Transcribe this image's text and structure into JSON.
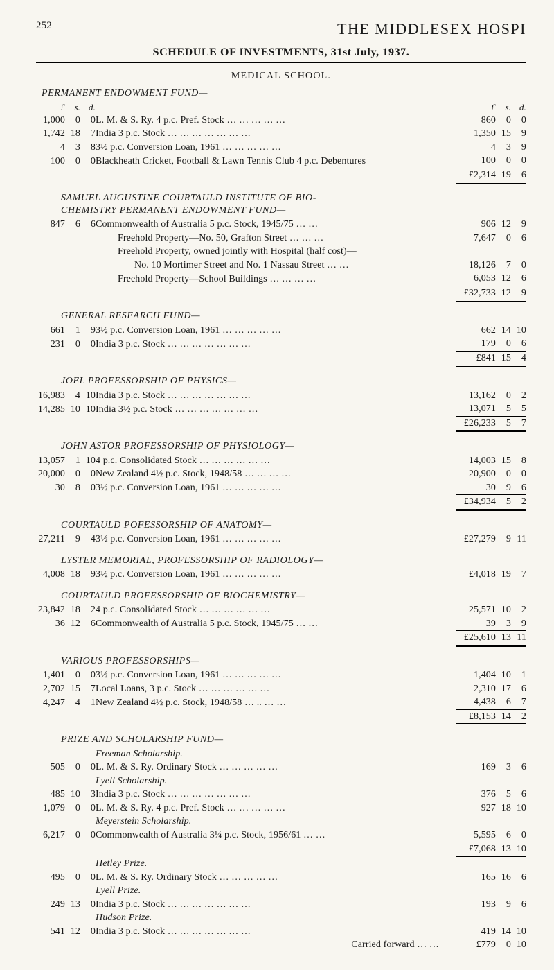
{
  "page_number": "252",
  "title_main": "THE MIDDLESEX HOSPI",
  "sub_title": "SCHEDULE OF INVESTMENTS, 31st July, 1937.",
  "section_head": "MEDICAL SCHOOL.",
  "col_headers": {
    "l": "£",
    "s": "s.",
    "d": "d.",
    "rl": "£",
    "rs": "s.",
    "rd": "d."
  },
  "groups": [
    {
      "title": "PERMANENT ENDOWMENT FUND—",
      "show_left_hdr": true,
      "rows": [
        {
          "l": "1,000",
          "s": "0",
          "d": "0",
          "desc": "L. M. & S. Ry. 4 p.c. Pref. Stock …   …   …   …   …",
          "rl": "860",
          "rs": "0",
          "rd": "0"
        },
        {
          "l": "1,742",
          "s": "18",
          "d": "7",
          "desc": "India 3 p.c. Stock    …   …   …   …   …   …   …",
          "rl": "1,350",
          "rs": "15",
          "rd": "9"
        },
        {
          "l": "4",
          "s": "3",
          "d": "8",
          "desc": "3½ p.c. Conversion Loan, 1961    …   …   …   …   …",
          "rl": "4",
          "rs": "3",
          "rd": "9"
        },
        {
          "l": "100",
          "s": "0",
          "d": "0",
          "desc": "Blackheath Cricket, Football & Lawn Tennis Club 4 p.c. Debentures",
          "rl": "100",
          "rs": "0",
          "rd": "0"
        }
      ],
      "total": {
        "rl": "£2,314",
        "rs": "19",
        "rd": "6"
      }
    },
    {
      "title": "SAMUEL AUGUSTINE COURTAULD INSTITUTE OF BIO-\n         CHEMISTRY PERMANENT ENDOWMENT FUND—",
      "indent": true,
      "rows": [
        {
          "l": "847",
          "s": "6",
          "d": "6",
          "desc": "Commonwealth of Australia 5 p.c. Stock, 1945/75   …   …",
          "rl": "906",
          "rs": "12",
          "rd": "9"
        },
        {
          "desc": "Freehold Property—No. 50, Grafton Street    …   …   …",
          "rl": "7,647",
          "rs": "0",
          "rd": "6",
          "indent": 1
        },
        {
          "desc": "Freehold Property, owned jointly with Hospital (half cost)—",
          "indent": 1
        },
        {
          "desc": "No. 10 Mortimer Street and No. 1 Nassau Street   …   …",
          "rl": "18,126",
          "rs": "7",
          "rd": "0",
          "indent": 2
        },
        {
          "desc": "Freehold Property—School Buildings    …   …   …   …",
          "rl": "6,053",
          "rs": "12",
          "rd": "6",
          "indent": 1
        }
      ],
      "total": {
        "rl": "£32,733",
        "rs": "12",
        "rd": "9"
      }
    },
    {
      "title": "GENERAL RESEARCH FUND—",
      "indent": true,
      "rows": [
        {
          "l": "661",
          "s": "1",
          "d": "9",
          "desc": "3½ p.c. Conversion Loan, 1961    …   …   …   …   …",
          "rl": "662",
          "rs": "14",
          "rd": "10"
        },
        {
          "l": "231",
          "s": "0",
          "d": "0",
          "desc": "India 3 p.c. Stock    …   …   …   …   …   …   …",
          "rl": "179",
          "rs": "0",
          "rd": "6"
        }
      ],
      "total": {
        "rl": "£841",
        "rs": "15",
        "rd": "4"
      }
    },
    {
      "title": "JOEL PROFESSORSHIP OF PHYSICS—",
      "indent": true,
      "rows": [
        {
          "l": "16,983",
          "s": "4",
          "d": "10",
          "desc": "India 3 p.c. Stock    …   …   …   …   …   …   …",
          "rl": "13,162",
          "rs": "0",
          "rd": "2"
        },
        {
          "l": "14,285",
          "s": "10",
          "d": "10",
          "desc": "India 3½ p.c. Stock   …   …   …   …   …   …   …",
          "rl": "13,071",
          "rs": "5",
          "rd": "5"
        }
      ],
      "total": {
        "rl": "£26,233",
        "rs": "5",
        "rd": "7"
      }
    },
    {
      "title": "JOHN ASTOR PROFESSORSHIP OF PHYSIOLOGY—",
      "indent": true,
      "rows": [
        {
          "l": "13,057",
          "s": "1",
          "d": "10",
          "desc": "4 p.c. Consolidated Stock    …   …   …   …   …   …",
          "rl": "14,003",
          "rs": "15",
          "rd": "8"
        },
        {
          "l": "20,000",
          "s": "0",
          "d": "0",
          "desc": "New Zealand 4½ p.c. Stock, 1948/58    …   …   …   …",
          "rl": "20,900",
          "rs": "0",
          "rd": "0"
        },
        {
          "l": "30",
          "s": "8",
          "d": "0",
          "desc": "3½ p.c. Conversion Loan, 1961    …   …   …   …   …",
          "rl": "30",
          "rs": "9",
          "rd": "6"
        }
      ],
      "total": {
        "rl": "£34,934",
        "rs": "5",
        "rd": "2"
      }
    },
    {
      "title": "COURTAULD POFESSORSHIP OF ANATOMY—",
      "indent": true,
      "rows": [
        {
          "l": "27,211",
          "s": "9",
          "d": "4",
          "desc": "3½ p.c. Conversion Loan, 1961    …   …   …   …   …",
          "rl": "£27,279",
          "rs": "9",
          "rd": "11"
        }
      ]
    },
    {
      "title": "LYSTER MEMORIAL, PROFESSORSHIP OF RADIOLOGY—",
      "indent": true,
      "rows": [
        {
          "l": "4,008",
          "s": "18",
          "d": "9",
          "desc": "3½ p.c. Conversion Loan, 1961    …   …   …   …   …",
          "rl": "£4,018",
          "rs": "19",
          "rd": "7"
        }
      ]
    },
    {
      "title": "COURTAULD PROFESSORSHIP OF BIOCHEMISTRY—",
      "indent": true,
      "rows": [
        {
          "l": "23,842",
          "s": "18",
          "d": "2",
          "desc": "4 p.c. Consolidated Stock   …   …   …   …   …   …",
          "rl": "25,571",
          "rs": "10",
          "rd": "2"
        },
        {
          "l": "36",
          "s": "12",
          "d": "6",
          "desc": "Commonwealth of Australia 5 p.c. Stock, 1945/75   …   …",
          "rl": "39",
          "rs": "3",
          "rd": "9"
        }
      ],
      "total": {
        "rl": "£25,610",
        "rs": "13",
        "rd": "11"
      }
    },
    {
      "title": "VARIOUS PROFESSORSHIPS—",
      "indent": true,
      "rows": [
        {
          "l": "1,401",
          "s": "0",
          "d": "0",
          "desc": "3½ p.c. Conversion Loan, 1961    …   …   …   …   …",
          "rl": "1,404",
          "rs": "10",
          "rd": "1"
        },
        {
          "l": "2,702",
          "s": "15",
          "d": "7",
          "desc": "Local Loans, 3 p.c. Stock    …   …   …   …   …   …",
          "rl": "2,310",
          "rs": "17",
          "rd": "6"
        },
        {
          "l": "4,247",
          "s": "4",
          "d": "1",
          "desc": "New Zealand 4½ p.c. Stock, 1948/58    …   ..   …   …",
          "rl": "4,438",
          "rs": "6",
          "rd": "7"
        }
      ],
      "total": {
        "rl": "£8,153",
        "rs": "14",
        "rd": "2"
      }
    },
    {
      "title": "PRIZE AND SCHOLARSHIP FUND—",
      "indent": true,
      "subgroups": [
        {
          "subtitle": "Freeman Scholarship.",
          "rows": [
            {
              "l": "505",
              "s": "0",
              "d": "0",
              "desc": "L. M. & S. Ry. Ordinary Stock    …   …   …   …   …",
              "rl": "169",
              "rs": "3",
              "rd": "6"
            }
          ]
        },
        {
          "subtitle": "Lyell Scholarship.",
          "rows": [
            {
              "l": "485",
              "s": "10",
              "d": "3",
              "desc": "India 3 p.c. Stock    …   …   …   …   …   …   …",
              "rl": "376",
              "rs": "5",
              "rd": "6"
            },
            {
              "l": "1,079",
              "s": "0",
              "d": "0",
              "desc": "L. M. & S. Ry. 4 p.c. Pref. Stock …   …   …   …   …",
              "rl": "927",
              "rs": "18",
              "rd": "10"
            }
          ]
        },
        {
          "subtitle": "Meyerstein Scholarship.",
          "rows": [
            {
              "l": "6,217",
              "s": "0",
              "d": "0",
              "desc": "Commonwealth of Australia 3¼ p.c. Stock, 1956/61   …   …",
              "rl": "5,595",
              "rs": "6",
              "rd": "0"
            }
          ],
          "subtotal": {
            "rl": "£7,068",
            "rs": "13",
            "rd": "10"
          }
        },
        {
          "subtitle": "Hetley Prize.",
          "rows": [
            {
              "l": "495",
              "s": "0",
              "d": "0",
              "desc": "L. M. & S. Ry. Ordinary Stock    …   …   …   …   …",
              "rl": "165",
              "rs": "16",
              "rd": "6"
            }
          ]
        },
        {
          "subtitle": "Lyell Prize.",
          "rows": [
            {
              "l": "249",
              "s": "13",
              "d": "0",
              "desc": "India 3 p.c. Stock    …   …   …   …   …   …   …",
              "rl": "193",
              "rs": "9",
              "rd": "6"
            }
          ]
        },
        {
          "subtitle": "Hudson Prize.",
          "rows": [
            {
              "l": "541",
              "s": "12",
              "d": "0",
              "desc": "India 3 p.c. Stock    …   …   …   …   …   …   …",
              "rl": "419",
              "rs": "14",
              "rd": "10"
            }
          ]
        }
      ],
      "carried": {
        "label": "Carried forward    …   …",
        "rl": "£779",
        "rs": "0",
        "rd": "10"
      }
    }
  ]
}
